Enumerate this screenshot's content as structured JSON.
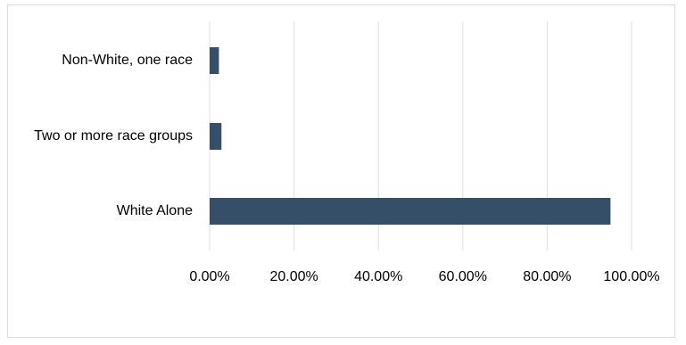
{
  "chart_data": {
    "type": "bar",
    "orientation": "horizontal",
    "title": "",
    "xlabel": "",
    "ylabel": "",
    "categories": [
      "Non-White, one race",
      "Two or more race groups",
      "White Alone"
    ],
    "series": [
      {
        "values": [
          0.022,
          0.028,
          0.95
        ],
        "color": "#354f69"
      }
    ],
    "xlim": [
      0,
      1.0
    ],
    "x_ticks": [
      0,
      0.2,
      0.4,
      0.6,
      0.8,
      1.0
    ],
    "x_tick_labels": [
      "0.00%",
      "20.00%",
      "40.00%",
      "60.00%",
      "80.00%",
      "100.00%"
    ],
    "grid": true,
    "legend": "none",
    "colors": {
      "bar": "#354f69",
      "gridline": "#d9dfe5",
      "frame": "#d9d9d9"
    }
  }
}
